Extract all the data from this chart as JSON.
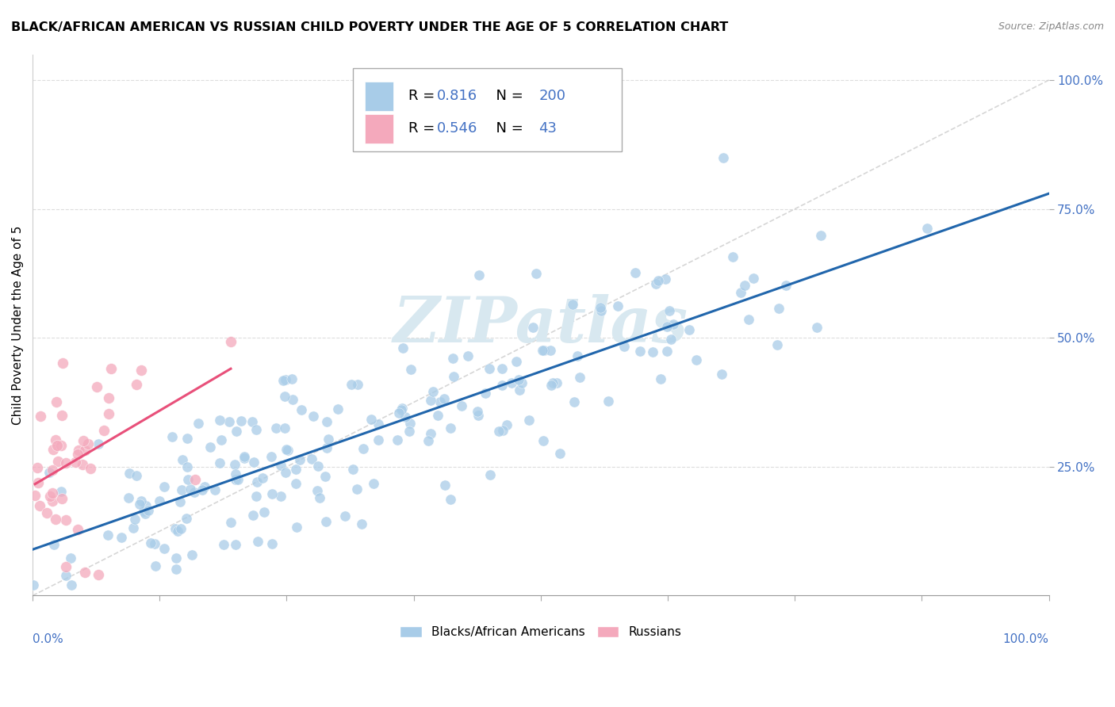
{
  "title": "BLACK/AFRICAN AMERICAN VS RUSSIAN CHILD POVERTY UNDER THE AGE OF 5 CORRELATION CHART",
  "source": "Source: ZipAtlas.com",
  "ylabel": "Child Poverty Under the Age of 5",
  "blue_R": 0.816,
  "blue_N": 200,
  "pink_R": 0.546,
  "pink_N": 43,
  "blue_scatter_color": "#a8cce8",
  "pink_scatter_color": "#f4a9bc",
  "blue_line_color": "#2166ac",
  "pink_line_color": "#e8507a",
  "ref_line_color": "#cccccc",
  "tick_label_color": "#4472C4",
  "legend_text_color": "#4472C4",
  "watermark_text": "ZIPatlas",
  "watermark_color": "#d8e8f0",
  "background_color": "#ffffff",
  "yticks": [
    0.25,
    0.5,
    0.75,
    1.0
  ],
  "ytick_labels": [
    "25.0%",
    "50.0%",
    "75.0%",
    "100.0%"
  ],
  "seed": 123
}
